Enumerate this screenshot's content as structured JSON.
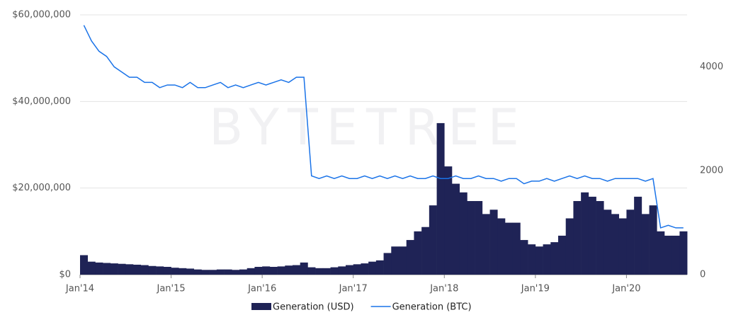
{
  "chart_data": {
    "type": "bar-line",
    "watermark": "BYTETREE",
    "x": [
      "2014-01",
      "2014-02",
      "2014-03",
      "2014-04",
      "2014-05",
      "2014-06",
      "2014-07",
      "2014-08",
      "2014-09",
      "2014-10",
      "2014-11",
      "2014-12",
      "2015-01",
      "2015-02",
      "2015-03",
      "2015-04",
      "2015-05",
      "2015-06",
      "2015-07",
      "2015-08",
      "2015-09",
      "2015-10",
      "2015-11",
      "2015-12",
      "2016-01",
      "2016-02",
      "2016-03",
      "2016-04",
      "2016-05",
      "2016-06",
      "2016-07",
      "2016-08",
      "2016-09",
      "2016-10",
      "2016-11",
      "2016-12",
      "2017-01",
      "2017-02",
      "2017-03",
      "2017-04",
      "2017-05",
      "2017-06",
      "2017-07",
      "2017-08",
      "2017-09",
      "2017-10",
      "2017-11",
      "2017-12",
      "2018-01",
      "2018-02",
      "2018-03",
      "2018-04",
      "2018-05",
      "2018-06",
      "2018-07",
      "2018-08",
      "2018-09",
      "2018-10",
      "2018-11",
      "2018-12",
      "2019-01",
      "2019-02",
      "2019-03",
      "2019-04",
      "2019-05",
      "2019-06",
      "2019-07",
      "2019-08",
      "2019-09",
      "2019-10",
      "2019-11",
      "2019-12",
      "2020-01",
      "2020-02",
      "2020-03",
      "2020-04",
      "2020-05",
      "2020-06",
      "2020-07",
      "2020-08"
    ],
    "xticks": [
      {
        "value": "2014-01",
        "label": "Jan'14"
      },
      {
        "value": "2015-01",
        "label": "Jan'15"
      },
      {
        "value": "2016-01",
        "label": "Jan'16"
      },
      {
        "value": "2017-01",
        "label": "Jan'17"
      },
      {
        "value": "2018-01",
        "label": "Jan'18"
      },
      {
        "value": "2019-01",
        "label": "Jan'19"
      },
      {
        "value": "2020-01",
        "label": "Jan'20"
      }
    ],
    "ylim": [
      0,
      60000000
    ],
    "yticks": [
      {
        "value": 0,
        "label": "$0"
      },
      {
        "value": 20000000,
        "label": "$20,000,000"
      },
      {
        "value": 40000000,
        "label": "$40,000,000"
      },
      {
        "value": 60000000,
        "label": "$60,000,000"
      }
    ],
    "y2lim": [
      0,
      5000
    ],
    "y2ticks": [
      0,
      2000,
      4000
    ],
    "grid": true,
    "legend": "bottom",
    "series": [
      {
        "name": "Generation (USD)",
        "color": "#1f2356",
        "type": "bar",
        "values": [
          4500000,
          3000000,
          2800000,
          2700000,
          2600000,
          2500000,
          2400000,
          2300000,
          2200000,
          2000000,
          1900000,
          1800000,
          1600000,
          1500000,
          1400000,
          1200000,
          1100000,
          1100000,
          1200000,
          1200000,
          1100000,
          1200000,
          1500000,
          1800000,
          1900000,
          1800000,
          1900000,
          2100000,
          2200000,
          2800000,
          1700000,
          1500000,
          1500000,
          1700000,
          1900000,
          2200000,
          2400000,
          2600000,
          3000000,
          3300000,
          5000000,
          6500000,
          6500000,
          8000000,
          10000000,
          11000000,
          16000000,
          35000000,
          25000000,
          21000000,
          19000000,
          17000000,
          17000000,
          14000000,
          15000000,
          13000000,
          12000000,
          12000000,
          8000000,
          7000000,
          6500000,
          7000000,
          7500000,
          9000000,
          13000000,
          17000000,
          19000000,
          18000000,
          17000000,
          15000000,
          14000000,
          13000000,
          15000000,
          18000000,
          14000000,
          16000000,
          10000000,
          9000000,
          9000000,
          10000000
        ]
      },
      {
        "name": "Generation (BTC)",
        "color": "#1a73e8",
        "type": "line",
        "axis": "y2",
        "values": [
          4800,
          4500,
          4300,
          4200,
          4000,
          3900,
          3800,
          3800,
          3700,
          3700,
          3600,
          3650,
          3650,
          3600,
          3700,
          3600,
          3600,
          3650,
          3700,
          3600,
          3650,
          3600,
          3650,
          3700,
          3650,
          3700,
          3750,
          3700,
          3800,
          3800,
          1900,
          1850,
          1900,
          1850,
          1900,
          1850,
          1850,
          1900,
          1850,
          1900,
          1850,
          1900,
          1850,
          1900,
          1850,
          1850,
          1900,
          1850,
          1850,
          1900,
          1850,
          1850,
          1900,
          1850,
          1850,
          1800,
          1850,
          1850,
          1750,
          1800,
          1800,
          1850,
          1800,
          1850,
          1900,
          1850,
          1900,
          1850,
          1850,
          1800,
          1850,
          1850,
          1850,
          1850,
          1800,
          1850,
          900,
          950,
          900,
          900
        ]
      }
    ]
  }
}
